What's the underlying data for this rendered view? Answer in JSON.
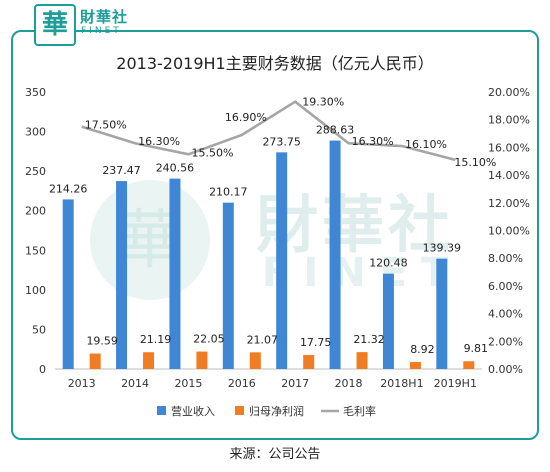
{
  "brand": {
    "logo_char": "華",
    "name_cn": "財華社",
    "name_en": "FINET",
    "color": "#1e9e98"
  },
  "chart_data": {
    "type": "bar",
    "title": "2013-2019H1主要财务数据（亿元人民币）",
    "categories": [
      "2013",
      "2014",
      "2015",
      "2016",
      "2017",
      "2018",
      "2018H1",
      "2019H1"
    ],
    "series": [
      {
        "name": "营业收入",
        "type": "bar",
        "axis": "left",
        "color": "#3f86d4",
        "values": [
          214.26,
          237.47,
          240.56,
          210.17,
          273.75,
          288.63,
          120.48,
          139.39
        ],
        "labels": [
          "214.26",
          "237.47",
          "240.56",
          "210.17",
          "273.75",
          "288.63",
          "120.48",
          "139.39"
        ]
      },
      {
        "name": "归母净利润",
        "type": "bar",
        "axis": "left",
        "color": "#f07d23",
        "values": [
          19.59,
          21.19,
          22.05,
          21.07,
          17.75,
          21.32,
          8.92,
          9.81
        ],
        "labels": [
          "19.59",
          "21.19",
          "22.05",
          "21.07",
          "17.75",
          "21.32",
          "8.92",
          "9.81"
        ]
      },
      {
        "name": "毛利率",
        "type": "line",
        "axis": "right",
        "color": "#a5a5a5",
        "values": [
          17.5,
          16.3,
          15.5,
          16.9,
          19.3,
          16.3,
          16.1,
          15.1
        ],
        "labels": [
          "17.50%",
          "16.30%",
          "15.50%",
          "16.90%",
          "19.30%",
          "16.30%",
          "16.10%",
          "15.10%"
        ]
      }
    ],
    "y_left": {
      "ylim": [
        0,
        350
      ],
      "ticks": [
        "0",
        "50",
        "100",
        "150",
        "200",
        "250",
        "300",
        "350"
      ]
    },
    "y_right": {
      "ylim": [
        0,
        20
      ],
      "ticks": [
        "0.00%",
        "2.00%",
        "4.00%",
        "6.00%",
        "8.00%",
        "10.00%",
        "12.00%",
        "14.00%",
        "16.00%",
        "18.00%",
        "20.00%"
      ]
    },
    "legend": {
      "placement": "bottom"
    },
    "grid": false
  },
  "source": "来源：公司公告"
}
